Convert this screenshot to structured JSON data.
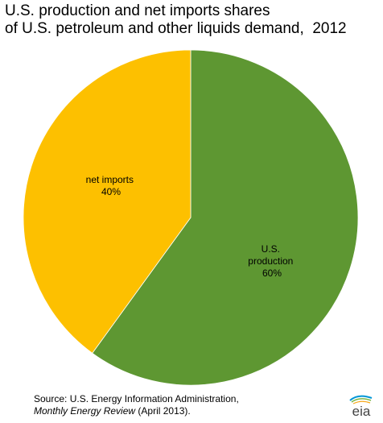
{
  "title_line1": "U.S. production and net imports shares",
  "title_line2": "of U.S. petroleum and other liquids demand,  2012",
  "chart_data": {
    "type": "pie",
    "title": "U.S. production and net imports shares of U.S. petroleum and other liquids demand,  2012",
    "slices": [
      {
        "label_line1": "U.S.",
        "label_line2": "production",
        "pct_label": "60%",
        "value": 60,
        "color": "#5e9732"
      },
      {
        "label_line1": "net imports",
        "label_line2": "",
        "pct_label": "40%",
        "value": 40,
        "color": "#fdc000"
      }
    ]
  },
  "source": {
    "prefix": "Source:  U.S. Energy Information Administration,",
    "publication": "Monthly Energy Review",
    "suffix": " (April 2013)."
  },
  "logo": {
    "text": "eia",
    "icon": "eia-logo-icon",
    "colors": [
      "#0096d6",
      "#7ab648",
      "#f7a81b"
    ]
  }
}
